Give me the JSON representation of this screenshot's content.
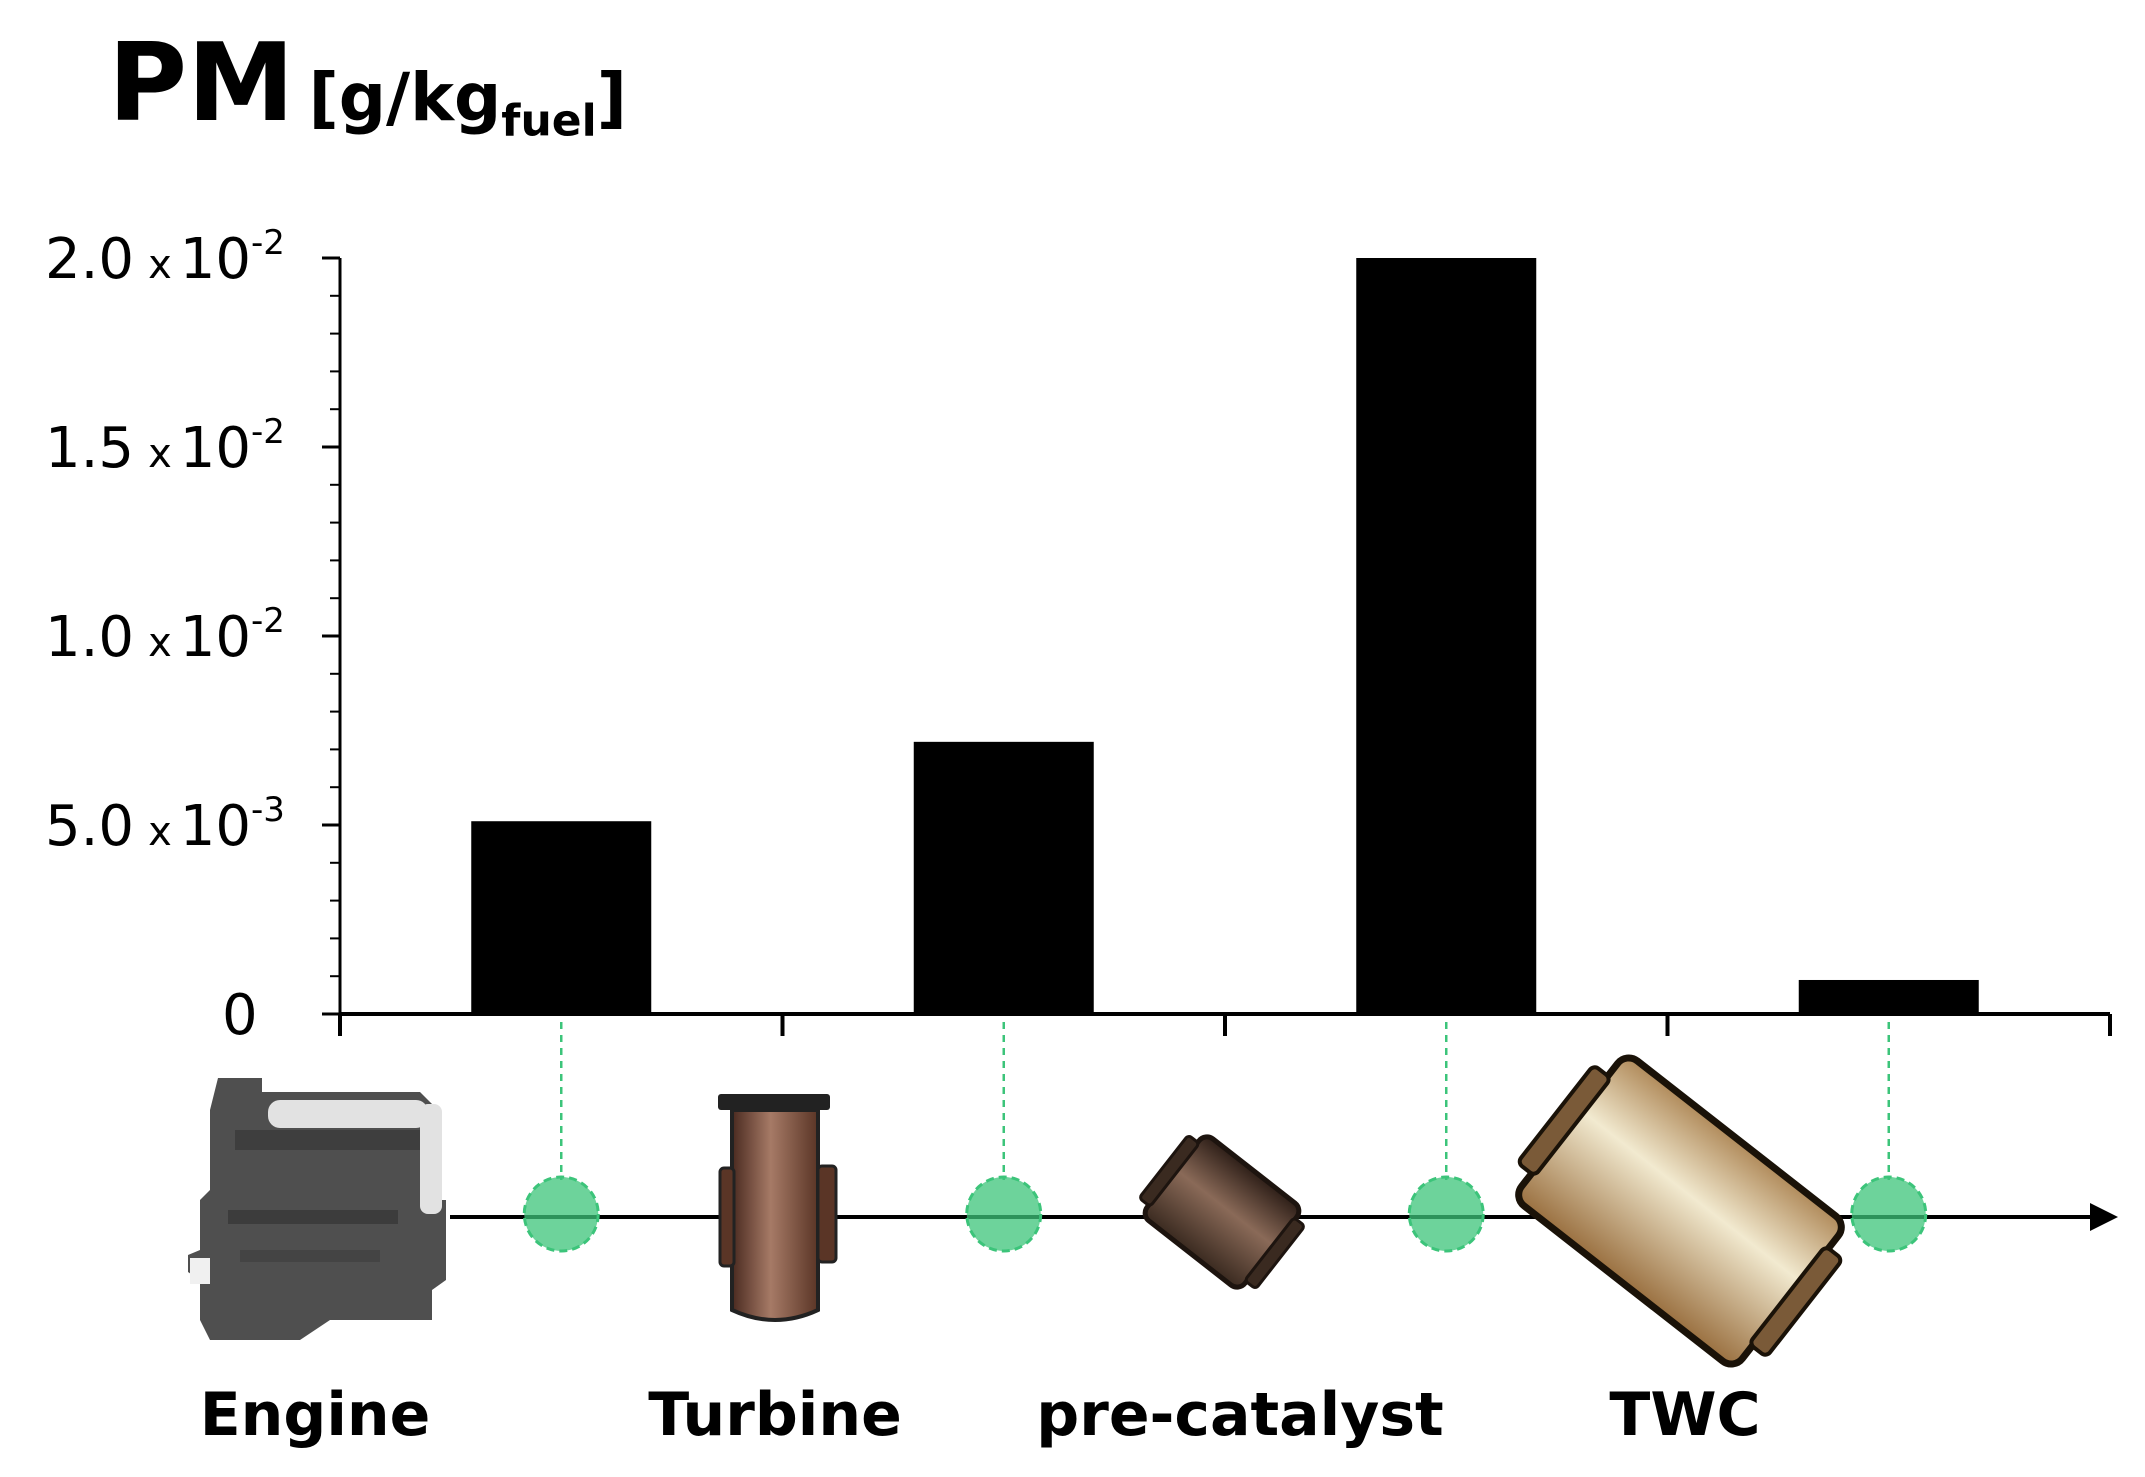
{
  "title": {
    "main": "PM",
    "unit_open": "[g/kg",
    "unit_sub": "fuel",
    "unit_close": "]"
  },
  "chart_data": {
    "type": "bar",
    "title": "PM [g/kgfuel]",
    "categories": [
      "Engine",
      "Turbine",
      "pre-catalyst",
      "TWC"
    ],
    "values": [
      0.0051,
      0.0072,
      0.02,
      0.0009
    ],
    "ylim": [
      0,
      0.02
    ],
    "yticks": [
      {
        "value": 0.02,
        "mantissa": "2.0",
        "mult": "x",
        "base": "10",
        "exp": "-2"
      },
      {
        "value": 0.015,
        "mantissa": "1.5",
        "mult": "x",
        "base": "10",
        "exp": "-2"
      },
      {
        "value": 0.01,
        "mantissa": "1.0",
        "mult": "x",
        "base": "10",
        "exp": "-2"
      },
      {
        "value": 0.005,
        "mantissa": "5.0",
        "mult": "x",
        "base": "10",
        "exp": "-3"
      },
      {
        "value": 0,
        "mantissa": "0",
        "mult": "",
        "base": "",
        "exp": ""
      }
    ],
    "bar_color": "#000000",
    "grid": false,
    "legend": "none"
  },
  "stages": [
    {
      "label": "Engine",
      "icon": "engine-icon"
    },
    {
      "label": "Turbine",
      "icon": "turbine-icon"
    },
    {
      "label": "pre-catalyst",
      "icon": "pre-catalyst-icon"
    },
    {
      "label": "TWC",
      "icon": "twc-icon"
    }
  ],
  "colors": {
    "sample_point": "#3cc47a",
    "engine": "#4f4f4f",
    "turbine": "#7a4a3a",
    "catalyst": "#d9c49a"
  }
}
